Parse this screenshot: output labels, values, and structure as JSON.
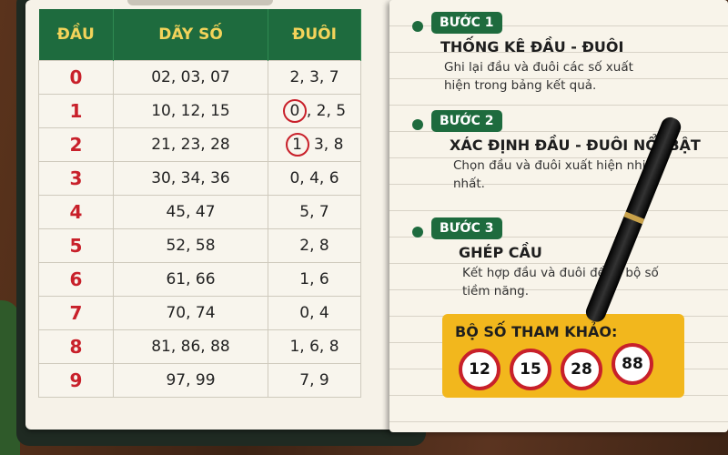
{
  "table": {
    "headers": [
      "ĐẦU",
      "DÃY SỐ",
      "ĐUÔI"
    ],
    "rows": [
      {
        "dau": "0",
        "day": "02, 03, 07",
        "duoi": "2, 3, 7"
      },
      {
        "dau": "1",
        "day": "10, 12, 15",
        "duoi_circled": "0",
        "duoi": ", 2, 5"
      },
      {
        "dau": "2",
        "day": "21, 23, 28",
        "duoi_circled": "1",
        "duoi": " 3, 8"
      },
      {
        "dau": "3",
        "day": "30, 34, 36",
        "duoi": "0, 4, 6"
      },
      {
        "dau": "4",
        "day": "45, 47",
        "duoi": "5, 7"
      },
      {
        "dau": "5",
        "day": "52, 58",
        "duoi": "2, 8"
      },
      {
        "dau": "6",
        "day": "61, 66",
        "duoi": "1, 6"
      },
      {
        "dau": "7",
        "day": "70, 74",
        "duoi": "0, 4"
      },
      {
        "dau": "8",
        "day": "81, 86, 88",
        "duoi": "1, 6, 8"
      },
      {
        "dau": "9",
        "day": "97, 99",
        "duoi": "7, 9"
      }
    ]
  },
  "steps": [
    {
      "badge": "BƯỚC 1",
      "title": "THỐNG KÊ ĐẦU - ĐUÔI",
      "desc": "Ghi lại đầu và đuôi các số xuất hiện trong bảng kết quả."
    },
    {
      "badge": "BƯỚC 2",
      "title": "XÁC ĐỊNH ĐẦU - ĐUÔI NỔI BẬT",
      "desc": "Chọn đầu và đuôi xuất hiện nhiều nhất."
    },
    {
      "badge": "BƯỚC 3",
      "title": "GHÉP CẦU",
      "desc": "Kết hợp đầu và đuôi để ra bộ số tiềm năng."
    }
  ],
  "reference": {
    "title": "BỘ SỐ THAM KHẢO:",
    "numbers": [
      "12",
      "15",
      "28",
      "88"
    ]
  },
  "colors": {
    "green": "#1e6b3e",
    "red": "#c8202a",
    "yellow": "#f2b71d",
    "header_text": "#f3d35a"
  }
}
